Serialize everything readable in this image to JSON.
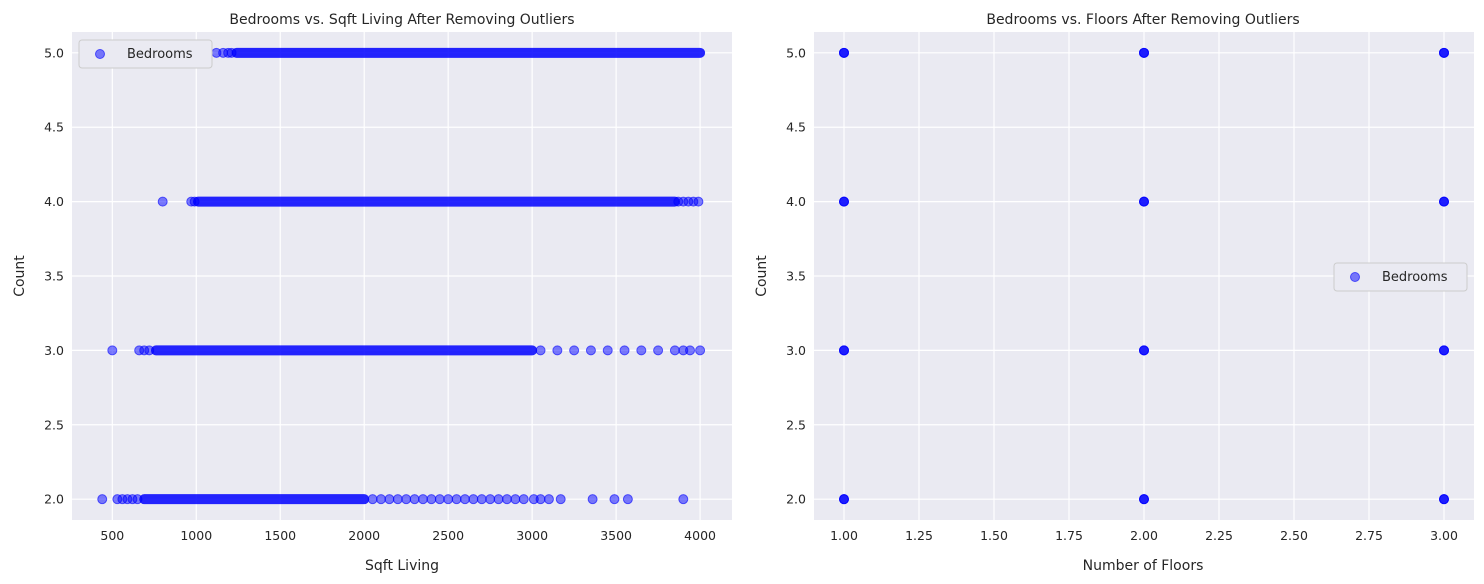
{
  "chart_data": [
    {
      "type": "scatter",
      "title": "Bedrooms vs. Sqft Living After Removing Outliers",
      "xlabel": "Sqft Living",
      "ylabel": "Count",
      "xlim": [
        260,
        4190
      ],
      "ylim": [
        1.86,
        5.14
      ],
      "xticks": [
        500,
        1000,
        1500,
        2000,
        2500,
        3000,
        3500,
        4000
      ],
      "xtick_labels": [
        "500",
        "1000",
        "1500",
        "2000",
        "2500",
        "3000",
        "3500",
        "4000"
      ],
      "yticks": [
        2.0,
        2.5,
        3.0,
        3.5,
        4.0,
        4.5,
        5.0
      ],
      "ytick_labels": [
        "2.0",
        "2.5",
        "3.0",
        "3.5",
        "4.0",
        "4.5",
        "5.0"
      ],
      "grid": true,
      "legend_position": "upper-left",
      "series": [
        {
          "name": "Bedrooms",
          "color": "#0000ff",
          "rows": [
            {
              "y": 5,
              "bands": [
                [
                  1240,
                  4000
                ]
              ],
              "points": [
                1120,
                1160,
                1190,
                1210
              ]
            },
            {
              "y": 4,
              "bands": [
                [
                  1010,
                  3850
                ]
              ],
              "points": [
                800,
                970,
                990,
                3870,
                3900,
                3930,
                3960,
                3990
              ]
            },
            {
              "y": 3,
              "bands": [
                [
                  760,
                  3000
                ]
              ],
              "points": [
                500,
                660,
                690,
                720,
                3050,
                3150,
                3250,
                3350,
                3450,
                3550,
                3650,
                3750,
                3850,
                3900,
                3940,
                4000
              ]
            },
            {
              "y": 2,
              "bands": [
                [
                  690,
                  2000
                ]
              ],
              "points": [
                440,
                530,
                560,
                590,
                620,
                650,
                2050,
                2100,
                2150,
                2200,
                2250,
                2300,
                2350,
                2400,
                2450,
                2500,
                2550,
                2600,
                2650,
                2700,
                2750,
                2800,
                2850,
                2900,
                2950,
                3010,
                3050,
                3100,
                3170,
                3360,
                3490,
                3570,
                3900
              ]
            }
          ]
        }
      ]
    },
    {
      "type": "scatter",
      "title": "Bedrooms vs. Floors After Removing Outliers",
      "xlabel": "Number of Floors",
      "ylabel": "Count",
      "xlim": [
        0.9,
        3.1
      ],
      "ylim": [
        1.86,
        5.14
      ],
      "xticks": [
        1.0,
        1.25,
        1.5,
        1.75,
        2.0,
        2.25,
        2.5,
        2.75,
        3.0
      ],
      "xtick_labels": [
        "1.00",
        "1.25",
        "1.50",
        "1.75",
        "2.00",
        "2.25",
        "2.50",
        "2.75",
        "3.00"
      ],
      "yticks": [
        2.0,
        2.5,
        3.0,
        3.5,
        4.0,
        4.5,
        5.0
      ],
      "ytick_labels": [
        "2.0",
        "2.5",
        "3.0",
        "3.5",
        "4.0",
        "4.5",
        "5.0"
      ],
      "grid": true,
      "legend_position": "center-right",
      "series": [
        {
          "name": "Bedrooms",
          "color": "#0000ff",
          "points": [
            [
              1,
              2
            ],
            [
              1,
              3
            ],
            [
              1,
              4
            ],
            [
              1,
              5
            ],
            [
              2,
              2
            ],
            [
              2,
              3
            ],
            [
              2,
              4
            ],
            [
              2,
              5
            ],
            [
              3,
              2
            ],
            [
              3,
              3
            ],
            [
              3,
              4
            ],
            [
              3,
              5
            ]
          ]
        }
      ]
    }
  ]
}
